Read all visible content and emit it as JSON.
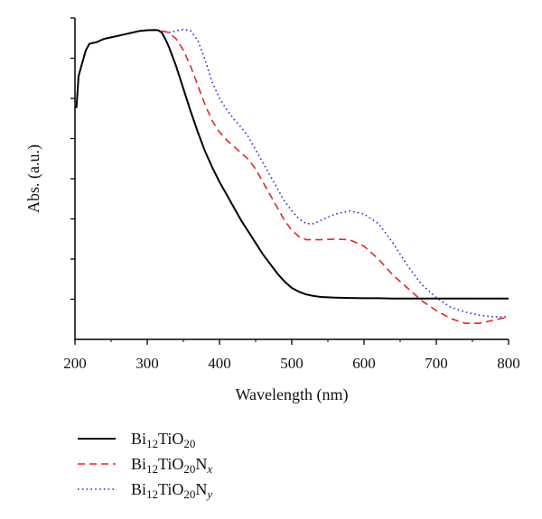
{
  "chart_data": {
    "type": "line",
    "xlabel": "Wavelength (nm)",
    "ylabel": "Abs. (a.u.)",
    "xlim": [
      200,
      800
    ],
    "ylim": [
      0,
      1
    ],
    "x_ticks": [
      200,
      300,
      400,
      500,
      600,
      700,
      800
    ],
    "y_tick_labels_shown": false,
    "y_minor_ticks": 8,
    "grid": false,
    "legend": "bottom-left, below plot",
    "series": [
      {
        "name": "Bi12TiO20",
        "legend_parts": {
          "base": "Bi",
          "sub1": "12",
          "mid": "TiO",
          "sub2": "20",
          "tail": "",
          "tail_sub": ""
        },
        "style": "solid",
        "color": "#000000",
        "x": [
          202,
          205,
          210,
          215,
          220,
          230,
          240,
          250,
          260,
          270,
          280,
          290,
          300,
          310,
          315,
          320,
          325,
          330,
          340,
          350,
          360,
          370,
          380,
          390,
          400,
          410,
          420,
          430,
          440,
          450,
          460,
          470,
          480,
          490,
          500,
          510,
          520,
          530,
          540,
          560,
          580,
          600,
          620,
          640,
          660,
          680,
          700,
          720,
          740,
          760,
          780,
          800
        ],
        "y": [
          0.72,
          0.82,
          0.86,
          0.9,
          0.92,
          0.925,
          0.935,
          0.94,
          0.945,
          0.95,
          0.955,
          0.96,
          0.962,
          0.963,
          0.962,
          0.955,
          0.935,
          0.91,
          0.85,
          0.78,
          0.71,
          0.645,
          0.585,
          0.535,
          0.49,
          0.45,
          0.41,
          0.37,
          0.335,
          0.3,
          0.265,
          0.235,
          0.205,
          0.18,
          0.16,
          0.148,
          0.14,
          0.135,
          0.132,
          0.13,
          0.129,
          0.128,
          0.128,
          0.127,
          0.127,
          0.127,
          0.127,
          0.127,
          0.127,
          0.127,
          0.127,
          0.127
        ]
      },
      {
        "name": "Bi12TiO20Nx",
        "legend_parts": {
          "base": "Bi",
          "sub1": "12",
          "mid": "TiO",
          "sub2": "20",
          "tail": "N",
          "tail_sub": "x"
        },
        "style": "dashed",
        "color": "#e8222b",
        "x": [
          320,
          330,
          340,
          350,
          360,
          370,
          380,
          390,
          400,
          410,
          420,
          430,
          440,
          450,
          460,
          470,
          480,
          490,
          500,
          510,
          520,
          530,
          540,
          560,
          580,
          600,
          620,
          640,
          660,
          680,
          700,
          720,
          740,
          760,
          780,
          800
        ],
        "y": [
          0.96,
          0.955,
          0.935,
          0.9,
          0.85,
          0.79,
          0.73,
          0.68,
          0.645,
          0.62,
          0.6,
          0.58,
          0.56,
          0.53,
          0.49,
          0.45,
          0.41,
          0.37,
          0.34,
          0.32,
          0.31,
          0.31,
          0.31,
          0.312,
          0.31,
          0.29,
          0.25,
          0.2,
          0.16,
          0.12,
          0.09,
          0.065,
          0.05,
          0.05,
          0.06,
          0.07
        ]
      },
      {
        "name": "Bi12TiO20Ny",
        "legend_parts": {
          "base": "Bi",
          "sub1": "12",
          "mid": "TiO",
          "sub2": "20",
          "tail": "N",
          "tail_sub": "y"
        },
        "style": "dotted",
        "color": "#2b2bd6",
        "x": [
          330,
          340,
          350,
          360,
          370,
          380,
          390,
          400,
          410,
          420,
          430,
          440,
          450,
          460,
          470,
          480,
          490,
          500,
          510,
          520,
          530,
          540,
          560,
          580,
          600,
          620,
          640,
          660,
          680,
          700,
          720,
          740,
          760,
          780,
          800
        ],
        "y": [
          0.955,
          0.96,
          0.965,
          0.96,
          0.93,
          0.87,
          0.8,
          0.75,
          0.715,
          0.685,
          0.66,
          0.63,
          0.59,
          0.55,
          0.51,
          0.47,
          0.43,
          0.4,
          0.375,
          0.36,
          0.36,
          0.37,
          0.39,
          0.4,
          0.39,
          0.36,
          0.3,
          0.23,
          0.17,
          0.13,
          0.1,
          0.085,
          0.075,
          0.07,
          0.07
        ]
      }
    ]
  }
}
